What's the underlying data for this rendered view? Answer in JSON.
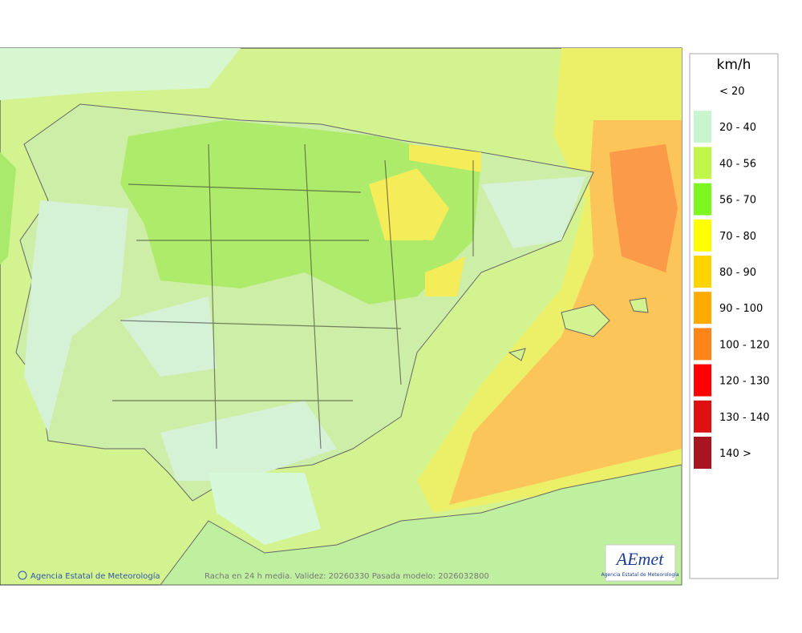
{
  "legend": {
    "title": "km/h",
    "items": [
      {
        "label": "< 20",
        "color": null
      },
      {
        "label": "20 - 40",
        "color": "#c8f5cf"
      },
      {
        "label": "40 - 56",
        "color": "#c2f54a"
      },
      {
        "label": "56 - 70",
        "color": "#7df51e"
      },
      {
        "label": "70 - 80",
        "color": "#ffff00"
      },
      {
        "label": "80 - 90",
        "color": "#ffd400"
      },
      {
        "label": "90 - 100",
        "color": "#ffaa00"
      },
      {
        "label": "100 - 120",
        "color": "#ff8419"
      },
      {
        "label": "120 - 130",
        "color": "#ff0000"
      },
      {
        "label": "130 - 140",
        "color": "#dd1111"
      },
      {
        "label": "140 >",
        "color": "#a81520"
      }
    ]
  },
  "footer": {
    "credit": "Agencia Estatal de Meteorología",
    "caption": "Racha en 24 h media. Validez: 20260330 Pasada modelo: 2026032800"
  },
  "logo": {
    "name": "AEmet",
    "subtitle": "Agencia Estatal de Meteorología"
  }
}
